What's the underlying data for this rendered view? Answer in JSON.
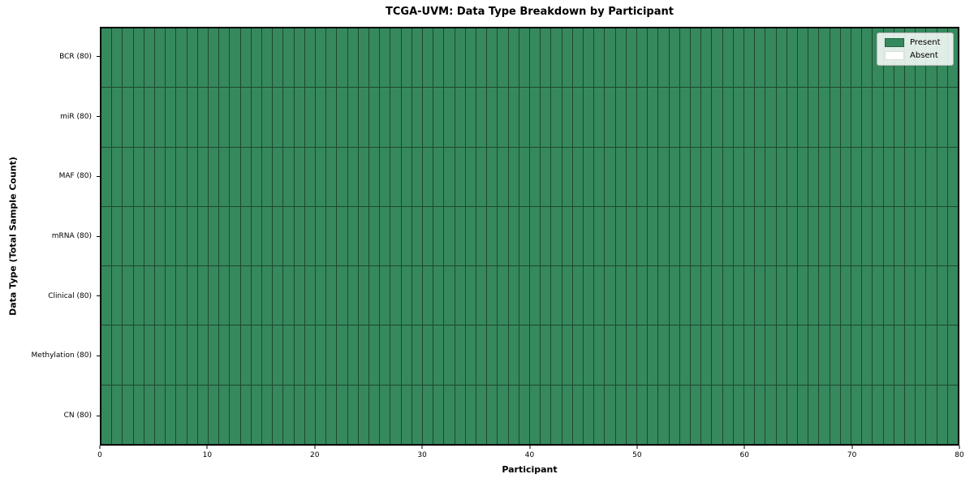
{
  "figure": {
    "title": "TCGA-UVM: Data Type Breakdown by Participant",
    "xlabel": "Participant",
    "ylabel": "Data Type (Total Sample Count)"
  },
  "legend": {
    "position": "upper-right",
    "items": [
      {
        "label": "Present",
        "color": "#35895c"
      },
      {
        "label": "Absent",
        "color": "#ffffff"
      }
    ]
  },
  "chart_data": {
    "type": "heatmap",
    "title": "TCGA-UVM: Data Type Breakdown by Participant",
    "xlabel": "Participant",
    "ylabel": "Data Type (Total Sample Count)",
    "x_range": [
      0,
      80
    ],
    "x_ticks": [
      0,
      10,
      20,
      30,
      40,
      50,
      60,
      70,
      80
    ],
    "participants_total": 80,
    "rows": [
      {
        "label": "BCR (80)",
        "data_type": "BCR",
        "total_samples": 80,
        "present_count": 80,
        "absent_count": 0
      },
      {
        "label": "miR (80)",
        "data_type": "miR",
        "total_samples": 80,
        "present_count": 80,
        "absent_count": 0
      },
      {
        "label": "MAF (80)",
        "data_type": "MAF",
        "total_samples": 80,
        "present_count": 80,
        "absent_count": 0
      },
      {
        "label": "mRNA (80)",
        "data_type": "mRNA",
        "total_samples": 80,
        "present_count": 80,
        "absent_count": 0
      },
      {
        "label": "Clinical (80)",
        "data_type": "Clinical",
        "total_samples": 80,
        "present_count": 80,
        "absent_count": 0
      },
      {
        "label": "Methylation (80)",
        "data_type": "Methylation",
        "total_samples": 80,
        "present_count": 80,
        "absent_count": 0
      },
      {
        "label": "CN (80)",
        "data_type": "CN",
        "total_samples": 80,
        "present_count": 80,
        "absent_count": 0
      }
    ],
    "all_cells_present": true,
    "legend_entries": [
      "Present",
      "Absent"
    ],
    "legend_position": "upper right",
    "colors": {
      "present": "#35895c",
      "absent": "#ffffff",
      "grid_line": "#1f4730",
      "frame": "#000000"
    }
  }
}
